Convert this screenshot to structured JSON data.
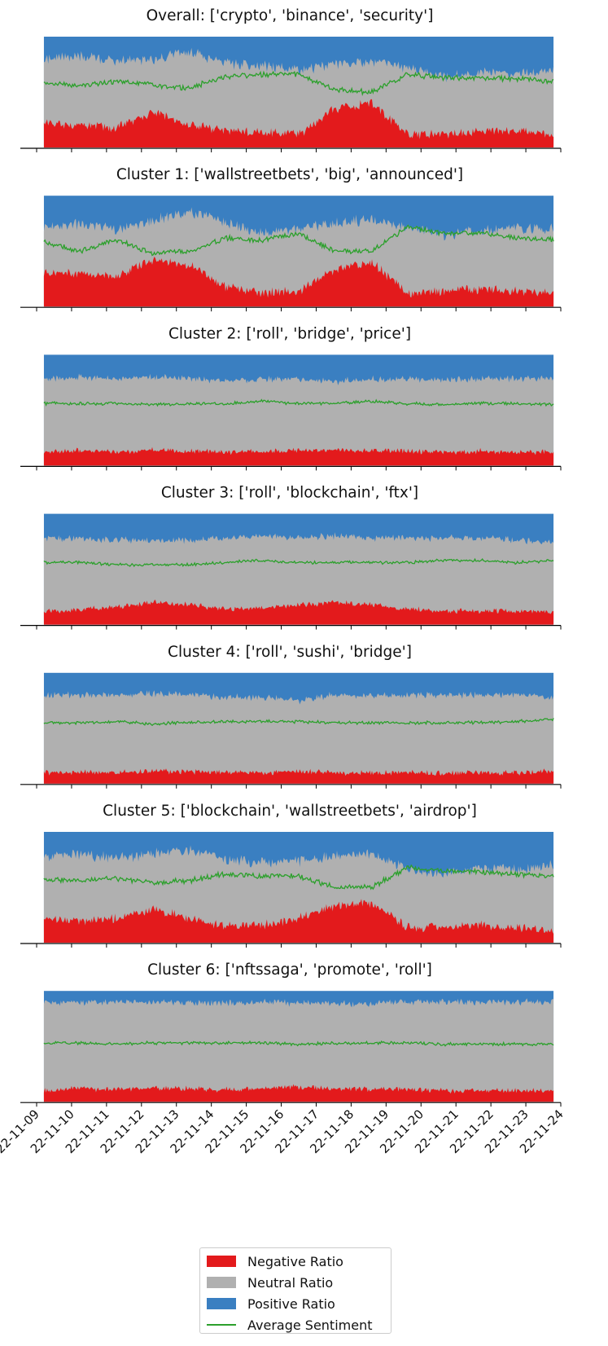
{
  "chart_data": {
    "type": "area",
    "description_of_stack": [
      "Negative Ratio",
      "Neutral Ratio",
      "Positive Ratio"
    ],
    "x_tick_labels": [
      "22-11-09",
      "22-11-10",
      "22-11-11",
      "22-11-12",
      "22-11-13",
      "22-11-14",
      "22-11-15",
      "22-11-16",
      "22-11-17",
      "22-11-18",
      "22-11-19",
      "22-11-20",
      "22-11-21",
      "22-11-22",
      "22-11-23",
      "22-11-24"
    ],
    "xlim": [
      "2022-11-09",
      "2022-11-24"
    ],
    "data_range": [
      "2022-11-09T05:00",
      "2022-11-23T19:00"
    ],
    "ylim": [
      0,
      1
    ],
    "colors": {
      "negative": "#e31a1c",
      "neutral": "#b0b0b0",
      "positive": "#3a7fc1",
      "average": "#2ca02c"
    },
    "legend": {
      "placement": "bottom-center",
      "items": [
        {
          "label": "Negative Ratio",
          "color": "#e31a1c",
          "kind": "patch"
        },
        {
          "label": "Neutral Ratio",
          "color": "#b0b0b0",
          "kind": "patch"
        },
        {
          "label": "Positive Ratio",
          "color": "#3a7fc1",
          "kind": "patch"
        },
        {
          "label": "Average Sentiment",
          "color": "#2ca02c",
          "kind": "line"
        }
      ]
    },
    "panels": [
      {
        "title": "Overall: ['crypto', 'binance', 'security']",
        "x": [
          "2022-11-09",
          "2022-11-10",
          "2022-11-11",
          "2022-11-12",
          "2022-11-13",
          "2022-11-14",
          "2022-11-15",
          "2022-11-16",
          "2022-11-17",
          "2022-11-18",
          "2022-11-19",
          "2022-11-20",
          "2022-11-21",
          "2022-11-22",
          "2022-11-23"
        ],
        "negative": [
          0.22,
          0.2,
          0.18,
          0.32,
          0.2,
          0.15,
          0.14,
          0.12,
          0.35,
          0.4,
          0.12,
          0.12,
          0.14,
          0.14,
          0.12
        ],
        "positive": [
          0.2,
          0.17,
          0.22,
          0.2,
          0.14,
          0.24,
          0.26,
          0.3,
          0.25,
          0.22,
          0.28,
          0.36,
          0.32,
          0.34,
          0.3
        ],
        "average": [
          0.58,
          0.56,
          0.6,
          0.56,
          0.54,
          0.64,
          0.66,
          0.66,
          0.52,
          0.5,
          0.66,
          0.63,
          0.62,
          0.62,
          0.6
        ]
      },
      {
        "title": "Cluster 1: ['wallstreetbets', 'big', 'announced']",
        "x": [
          "2022-11-09",
          "2022-11-10",
          "2022-11-11",
          "2022-11-12",
          "2022-11-13",
          "2022-11-14",
          "2022-11-15",
          "2022-11-16",
          "2022-11-17",
          "2022-11-18",
          "2022-11-19",
          "2022-11-20",
          "2022-11-21",
          "2022-11-22",
          "2022-11-23"
        ],
        "negative": [
          0.3,
          0.3,
          0.28,
          0.42,
          0.38,
          0.18,
          0.12,
          0.14,
          0.34,
          0.4,
          0.12,
          0.14,
          0.16,
          0.14,
          0.12
        ],
        "positive": [
          0.28,
          0.26,
          0.3,
          0.22,
          0.14,
          0.24,
          0.34,
          0.3,
          0.24,
          0.22,
          0.28,
          0.36,
          0.32,
          0.3,
          0.3
        ],
        "average": [
          0.58,
          0.5,
          0.6,
          0.48,
          0.5,
          0.62,
          0.6,
          0.66,
          0.5,
          0.5,
          0.72,
          0.66,
          0.66,
          0.62,
          0.6
        ]
      },
      {
        "title": "Cluster 2: ['roll', 'bridge', 'price']",
        "x": [
          "2022-11-09",
          "2022-11-10",
          "2022-11-11",
          "2022-11-12",
          "2022-11-13",
          "2022-11-14",
          "2022-11-15",
          "2022-11-16",
          "2022-11-17",
          "2022-11-18",
          "2022-11-19",
          "2022-11-20",
          "2022-11-21",
          "2022-11-22",
          "2022-11-23"
        ],
        "negative": [
          0.12,
          0.14,
          0.12,
          0.14,
          0.13,
          0.12,
          0.13,
          0.14,
          0.14,
          0.13,
          0.13,
          0.12,
          0.13,
          0.12,
          0.12
        ],
        "positive": [
          0.22,
          0.2,
          0.22,
          0.2,
          0.22,
          0.24,
          0.22,
          0.22,
          0.24,
          0.22,
          0.22,
          0.22,
          0.22,
          0.22,
          0.22
        ],
        "average": [
          0.56,
          0.56,
          0.56,
          0.55,
          0.56,
          0.56,
          0.58,
          0.56,
          0.56,
          0.58,
          0.56,
          0.55,
          0.56,
          0.56,
          0.55
        ]
      },
      {
        "title": "Cluster 3: ['roll', 'blockchain', 'ftx']",
        "x": [
          "2022-11-09",
          "2022-11-10",
          "2022-11-11",
          "2022-11-12",
          "2022-11-13",
          "2022-11-14",
          "2022-11-15",
          "2022-11-16",
          "2022-11-17",
          "2022-11-18",
          "2022-11-19",
          "2022-11-20",
          "2022-11-21",
          "2022-11-22",
          "2022-11-23"
        ],
        "negative": [
          0.12,
          0.14,
          0.16,
          0.2,
          0.18,
          0.14,
          0.15,
          0.18,
          0.2,
          0.18,
          0.14,
          0.12,
          0.12,
          0.12,
          0.12
        ],
        "positive": [
          0.22,
          0.22,
          0.24,
          0.24,
          0.24,
          0.22,
          0.2,
          0.22,
          0.2,
          0.22,
          0.22,
          0.22,
          0.22,
          0.24,
          0.26
        ],
        "average": [
          0.56,
          0.56,
          0.54,
          0.54,
          0.54,
          0.56,
          0.58,
          0.56,
          0.56,
          0.56,
          0.56,
          0.58,
          0.58,
          0.56,
          0.58
        ]
      },
      {
        "title": "Cluster 4: ['roll', 'sushi', 'bridge']",
        "x": [
          "2022-11-09",
          "2022-11-10",
          "2022-11-11",
          "2022-11-12",
          "2022-11-13",
          "2022-11-14",
          "2022-11-15",
          "2022-11-16",
          "2022-11-17",
          "2022-11-18",
          "2022-11-19",
          "2022-11-20",
          "2022-11-21",
          "2022-11-22",
          "2022-11-23"
        ],
        "negative": [
          0.1,
          0.1,
          0.1,
          0.11,
          0.11,
          0.1,
          0.1,
          0.11,
          0.1,
          0.1,
          0.1,
          0.09,
          0.1,
          0.1,
          0.12
        ],
        "positive": [
          0.2,
          0.2,
          0.2,
          0.19,
          0.2,
          0.22,
          0.22,
          0.25,
          0.2,
          0.2,
          0.2,
          0.2,
          0.2,
          0.2,
          0.22
        ],
        "average": [
          0.55,
          0.55,
          0.56,
          0.54,
          0.55,
          0.56,
          0.56,
          0.56,
          0.55,
          0.55,
          0.55,
          0.55,
          0.55,
          0.56,
          0.58
        ]
      },
      {
        "title": "Cluster 5: ['blockchain', 'wallstreetbets', 'airdrop']",
        "x": [
          "2022-11-09",
          "2022-11-10",
          "2022-11-11",
          "2022-11-12",
          "2022-11-13",
          "2022-11-14",
          "2022-11-15",
          "2022-11-16",
          "2022-11-17",
          "2022-11-18",
          "2022-11-19",
          "2022-11-20",
          "2022-11-21",
          "2022-11-22",
          "2022-11-23"
        ],
        "negative": [
          0.22,
          0.2,
          0.22,
          0.3,
          0.22,
          0.15,
          0.16,
          0.22,
          0.34,
          0.36,
          0.14,
          0.14,
          0.16,
          0.14,
          0.12
        ],
        "positive": [
          0.22,
          0.2,
          0.24,
          0.2,
          0.16,
          0.24,
          0.28,
          0.26,
          0.22,
          0.2,
          0.34,
          0.38,
          0.32,
          0.34,
          0.3
        ],
        "average": [
          0.57,
          0.56,
          0.58,
          0.54,
          0.56,
          0.62,
          0.6,
          0.6,
          0.5,
          0.5,
          0.68,
          0.65,
          0.64,
          0.62,
          0.6
        ]
      },
      {
        "title": "Cluster 6: ['nftssaga', 'promote', 'roll']",
        "x": [
          "2022-11-09",
          "2022-11-10",
          "2022-11-11",
          "2022-11-12",
          "2022-11-13",
          "2022-11-14",
          "2022-11-15",
          "2022-11-16",
          "2022-11-17",
          "2022-11-18",
          "2022-11-19",
          "2022-11-20",
          "2022-11-21",
          "2022-11-22",
          "2022-11-23"
        ],
        "negative": [
          0.1,
          0.12,
          0.11,
          0.12,
          0.12,
          0.11,
          0.12,
          0.13,
          0.12,
          0.11,
          0.11,
          0.1,
          0.1,
          0.1,
          0.1
        ],
        "positive": [
          0.1,
          0.11,
          0.1,
          0.1,
          0.1,
          0.11,
          0.1,
          0.11,
          0.11,
          0.12,
          0.1,
          0.1,
          0.1,
          0.1,
          0.1
        ],
        "average": [
          0.53,
          0.53,
          0.52,
          0.53,
          0.53,
          0.53,
          0.53,
          0.52,
          0.53,
          0.53,
          0.53,
          0.52,
          0.52,
          0.52,
          0.52
        ]
      }
    ]
  }
}
